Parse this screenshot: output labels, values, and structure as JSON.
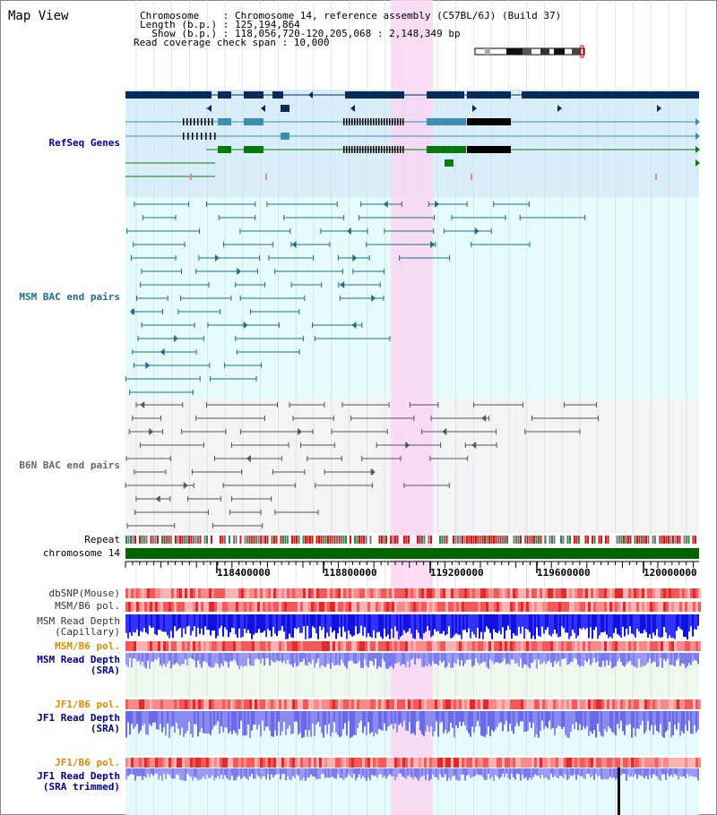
{
  "map_title": "Map View",
  "header": {
    "line1": "Chromosome    : Chromosome 14, reference assembly (C57BL/6J) (Build 37)",
    "line2": "Length (b.p.) : 125,194,864",
    "line3": "  Show (b.p.) : 118,056,720-120,205,068 : 2,148,349 bp",
    "line4": "Read coverage check span : 10,000"
  },
  "tracks": {
    "refseq": "RefSeq Genes",
    "msm_bac": "MSM BAC end pairs",
    "b6n_bac": "B6N BAC end pairs",
    "repeat": "Repeat",
    "chromosome": "chromosome 14",
    "dbsnp": "dbSNP(Mouse)",
    "msm_b6_pol_1": "MSM/B6 pol.",
    "msm_read_depth_cap_1": "MSM Read Depth",
    "msm_read_depth_cap_2": "(Capillary)",
    "msm_b6_pol_2": "MSM/B6 pol.",
    "msm_read_depth_sra_1": "MSM Read Depth",
    "msm_read_depth_sra_2": "(SRA)",
    "jf1_b6_pol_1": "JF1/B6 pol.",
    "jf1_read_depth_sra_1": "JF1 Read Depth",
    "jf1_read_depth_sra_2": "(SRA)",
    "jf1_b6_pol_2": "JF1/B6 pol.",
    "jf1_read_depth_trim_1": "JF1 Read Depth",
    "jf1_read_depth_trim_2": "(SRA trimmed)"
  },
  "scale_ticks": [
    "118400000",
    "118800000",
    "119200000",
    "119600000",
    "120000000"
  ],
  "colors": {
    "highlight": "#f9d6f2",
    "refseq_bg": "#d8eefa",
    "msm_bg": "#e6fbfb",
    "b6n_bg": "#f4f4f6",
    "chromosome": "#006400",
    "gene_navy": "#0b2a5c",
    "gene_teal": "#3d8fb0",
    "gene_green": "#0a7a0a",
    "label_blue": "#0000aa",
    "label_teal": "#1a6f8a",
    "label_orange": "#e08a00",
    "label_darkblue": "#00008b"
  }
}
